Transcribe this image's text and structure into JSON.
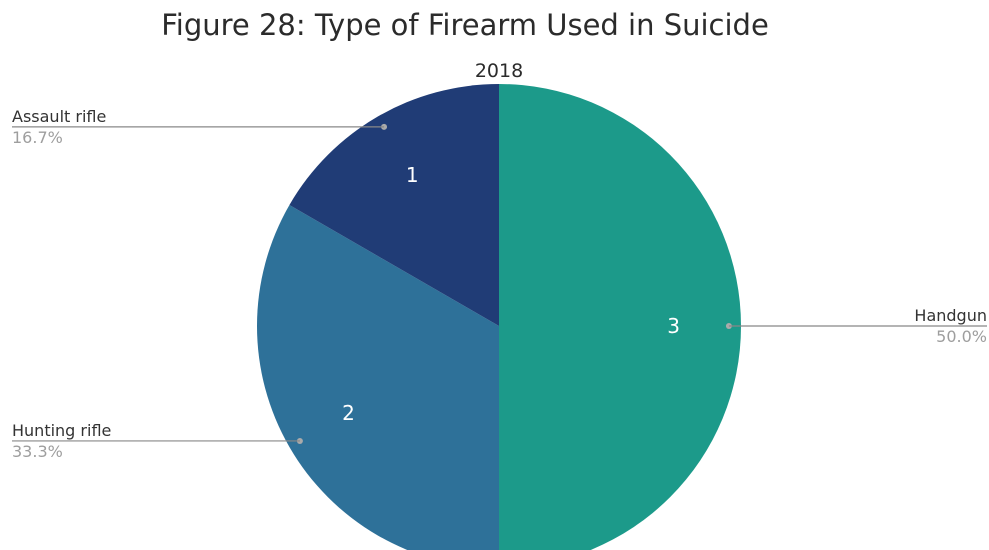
{
  "chart_data": {
    "type": "pie",
    "title": "Figure 28: Type of Firearm Used in Suicide",
    "subtitle": "2018",
    "slices": [
      {
        "label": "Handgun",
        "value": 3,
        "percent": "50.0%",
        "color": "#1c9a8a",
        "side": "right"
      },
      {
        "label": "Hunting rifle",
        "value": 2,
        "percent": "33.3%",
        "color": "#2e7199",
        "side": "left"
      },
      {
        "label": "Assault rifle",
        "value": 1,
        "percent": "16.7%",
        "color": "#203c76",
        "side": "left"
      }
    ]
  }
}
